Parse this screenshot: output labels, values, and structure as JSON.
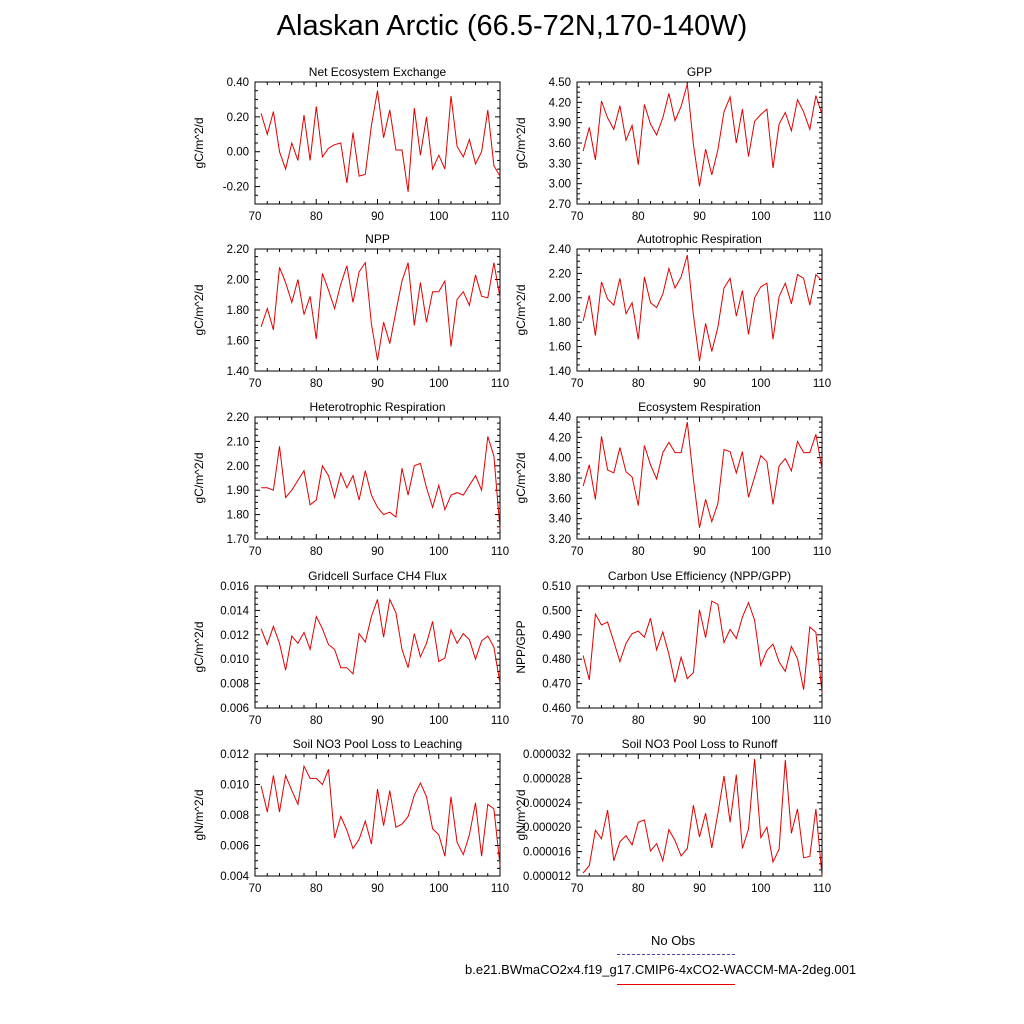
{
  "page": {
    "title": "Alaskan Arctic (66.5-72N,170-140W)",
    "legend": {
      "obs_label": "No Obs",
      "obs_color": "#4a4ab0",
      "model_label": "b.e21.BWmaCO2x4.f19_g17.CMIP6-4xCO2-WACCM-MA-2deg.001",
      "model_color": "#e00000"
    }
  },
  "chart_data": [
    {
      "type": "line",
      "title": "Net Ecosystem Exchange",
      "ylabel": "gC/m^2/d",
      "xlim": [
        70,
        110
      ],
      "ylim": [
        -0.3,
        0.4
      ],
      "xticks": [
        70,
        80,
        90,
        100,
        110
      ],
      "xtick_labels": [
        "70",
        "80",
        "90",
        "100",
        "110"
      ],
      "yticks": [
        -0.2,
        0.0,
        0.2,
        0.4
      ],
      "ytick_labels": [
        "-0.20",
        "0.00",
        "0.20",
        "0.40"
      ],
      "x": [
        71,
        72,
        73,
        74,
        75,
        76,
        77,
        78,
        79,
        80,
        81,
        82,
        83,
        84,
        85,
        86,
        87,
        88,
        89,
        90,
        91,
        92,
        93,
        94,
        95,
        96,
        97,
        98,
        99,
        100,
        101,
        102,
        103,
        104,
        105,
        106,
        107,
        108,
        109,
        110
      ],
      "values": [
        0.22,
        0.1,
        0.23,
        0.0,
        -0.1,
        0.05,
        -0.05,
        0.21,
        -0.05,
        0.26,
        -0.03,
        0.02,
        0.04,
        0.05,
        -0.18,
        0.11,
        -0.14,
        -0.13,
        0.15,
        0.35,
        0.08,
        0.24,
        0.01,
        0.01,
        -0.23,
        0.25,
        -0.02,
        0.2,
        -0.1,
        -0.02,
        -0.1,
        0.32,
        0.03,
        -0.03,
        0.07,
        -0.07,
        0.0,
        0.24,
        -0.08,
        -0.14
      ]
    },
    {
      "type": "line",
      "title": "GPP",
      "ylabel": "gC/m^2/d",
      "xlim": [
        70,
        110
      ],
      "ylim": [
        2.7,
        4.5
      ],
      "xticks": [
        70,
        80,
        90,
        100,
        110
      ],
      "xtick_labels": [
        "70",
        "80",
        "90",
        "100",
        "110"
      ],
      "yticks": [
        2.7,
        3.0,
        3.3,
        3.6,
        3.9,
        4.2,
        4.5
      ],
      "ytick_labels": [
        "2.70",
        "3.00",
        "3.30",
        "3.60",
        "3.90",
        "4.20",
        "4.50"
      ],
      "x": [
        71,
        72,
        73,
        74,
        75,
        76,
        77,
        78,
        79,
        80,
        81,
        82,
        83,
        84,
        85,
        86,
        87,
        88,
        89,
        90,
        91,
        92,
        93,
        94,
        95,
        96,
        97,
        98,
        99,
        100,
        101,
        102,
        103,
        104,
        105,
        106,
        107,
        108,
        109,
        110
      ],
      "values": [
        3.48,
        3.83,
        3.35,
        4.22,
        3.97,
        3.8,
        4.15,
        3.64,
        3.86,
        3.28,
        4.17,
        3.88,
        3.72,
        3.97,
        4.33,
        3.93,
        4.14,
        4.47,
        3.58,
        2.96,
        3.51,
        3.13,
        3.5,
        4.06,
        4.28,
        3.6,
        4.1,
        3.4,
        3.92,
        4.02,
        4.1,
        3.23,
        3.88,
        4.05,
        3.78,
        4.24,
        4.06,
        3.8,
        4.3,
        4.02
      ]
    },
    {
      "type": "line",
      "title": "NPP",
      "ylabel": "gC/m^2/d",
      "xlim": [
        70,
        110
      ],
      "ylim": [
        1.4,
        2.2
      ],
      "xticks": [
        70,
        80,
        90,
        100,
        110
      ],
      "xtick_labels": [
        "70",
        "80",
        "90",
        "100",
        "110"
      ],
      "yticks": [
        1.4,
        1.6,
        1.8,
        2.0,
        2.2
      ],
      "ytick_labels": [
        "1.40",
        "1.60",
        "1.80",
        "2.00",
        "2.20"
      ],
      "x": [
        71,
        72,
        73,
        74,
        75,
        76,
        77,
        78,
        79,
        80,
        81,
        82,
        83,
        84,
        85,
        86,
        87,
        88,
        89,
        90,
        91,
        92,
        93,
        94,
        95,
        96,
        97,
        98,
        99,
        100,
        101,
        102,
        103,
        104,
        105,
        106,
        107,
        108,
        109,
        110
      ],
      "values": [
        1.69,
        1.81,
        1.67,
        2.08,
        1.98,
        1.85,
        2.0,
        1.77,
        1.89,
        1.61,
        2.04,
        1.93,
        1.81,
        1.97,
        2.09,
        1.85,
        2.05,
        2.11,
        1.71,
        1.47,
        1.72,
        1.58,
        1.79,
        1.99,
        2.11,
        1.7,
        1.98,
        1.72,
        1.92,
        1.92,
        1.99,
        1.56,
        1.87,
        1.92,
        1.83,
        2.03,
        1.89,
        1.88,
        2.11,
        1.88
      ]
    },
    {
      "type": "line",
      "title": "Autotrophic Respiration",
      "ylabel": "gC/m^2/d",
      "xlim": [
        70,
        110
      ],
      "ylim": [
        1.4,
        2.4
      ],
      "xticks": [
        70,
        80,
        90,
        100,
        110
      ],
      "xtick_labels": [
        "70",
        "80",
        "90",
        "100",
        "110"
      ],
      "yticks": [
        1.4,
        1.6,
        1.8,
        2.0,
        2.2,
        2.4
      ],
      "ytick_labels": [
        "1.40",
        "1.60",
        "1.80",
        "2.00",
        "2.20",
        "2.40"
      ],
      "x": [
        71,
        72,
        73,
        74,
        75,
        76,
        77,
        78,
        79,
        80,
        81,
        82,
        83,
        84,
        85,
        86,
        87,
        88,
        89,
        90,
        91,
        92,
        93,
        94,
        95,
        96,
        97,
        98,
        99,
        100,
        101,
        102,
        103,
        104,
        105,
        106,
        107,
        108,
        109,
        110
      ],
      "values": [
        1.81,
        2.02,
        1.69,
        2.13,
        1.99,
        1.94,
        2.16,
        1.87,
        1.96,
        1.66,
        2.17,
        1.96,
        1.92,
        2.03,
        2.24,
        2.08,
        2.17,
        2.35,
        1.86,
        1.48,
        1.79,
        1.56,
        1.76,
        2.08,
        2.16,
        1.85,
        2.06,
        1.7,
        2.0,
        2.09,
        2.12,
        1.66,
        2.01,
        2.12,
        1.95,
        2.19,
        2.16,
        1.94,
        2.19,
        2.14
      ]
    },
    {
      "type": "line",
      "title": "Heterotrophic Respiration",
      "ylabel": "gC/m^2/d",
      "xlim": [
        70,
        110
      ],
      "ylim": [
        1.7,
        2.2
      ],
      "xticks": [
        70,
        80,
        90,
        100,
        110
      ],
      "xtick_labels": [
        "70",
        "80",
        "90",
        "100",
        "110"
      ],
      "yticks": [
        1.7,
        1.8,
        1.9,
        2.0,
        2.1,
        2.2
      ],
      "ytick_labels": [
        "1.70",
        "1.80",
        "1.90",
        "2.00",
        "2.10",
        "2.20"
      ],
      "x": [
        71,
        72,
        73,
        74,
        75,
        76,
        77,
        78,
        79,
        80,
        81,
        82,
        83,
        84,
        85,
        86,
        87,
        88,
        89,
        90,
        91,
        92,
        93,
        94,
        95,
        96,
        97,
        98,
        99,
        100,
        101,
        102,
        103,
        104,
        105,
        106,
        107,
        108,
        109,
        110
      ],
      "values": [
        1.91,
        1.91,
        1.9,
        2.08,
        1.87,
        1.9,
        1.94,
        1.98,
        1.84,
        1.86,
        2.0,
        1.96,
        1.87,
        1.97,
        1.91,
        1.96,
        1.86,
        1.98,
        1.88,
        1.83,
        1.8,
        1.81,
        1.79,
        1.99,
        1.88,
        2.0,
        2.01,
        1.91,
        1.83,
        1.92,
        1.82,
        1.88,
        1.89,
        1.88,
        1.92,
        1.96,
        1.9,
        2.12,
        2.04,
        1.74
      ]
    },
    {
      "type": "line",
      "title": "Ecosystem Respiration",
      "ylabel": "gC/m^2/d",
      "xlim": [
        70,
        110
      ],
      "ylim": [
        3.2,
        4.4
      ],
      "xticks": [
        70,
        80,
        90,
        100,
        110
      ],
      "xtick_labels": [
        "70",
        "80",
        "90",
        "100",
        "110"
      ],
      "yticks": [
        3.2,
        3.4,
        3.6,
        3.8,
        4.0,
        4.2,
        4.4
      ],
      "ytick_labels": [
        "3.20",
        "3.40",
        "3.60",
        "3.80",
        "4.00",
        "4.20",
        "4.40"
      ],
      "x": [
        71,
        72,
        73,
        74,
        75,
        76,
        77,
        78,
        79,
        80,
        81,
        82,
        83,
        84,
        85,
        86,
        87,
        88,
        89,
        90,
        91,
        92,
        93,
        94,
        95,
        96,
        97,
        98,
        99,
        100,
        101,
        102,
        103,
        104,
        105,
        106,
        107,
        108,
        109,
        110
      ],
      "values": [
        3.72,
        3.93,
        3.59,
        4.21,
        3.88,
        3.85,
        4.1,
        3.86,
        3.81,
        3.53,
        4.12,
        3.93,
        3.79,
        4.05,
        4.15,
        4.05,
        4.05,
        4.35,
        3.79,
        3.31,
        3.59,
        3.37,
        3.55,
        4.08,
        4.06,
        3.85,
        4.06,
        3.61,
        3.81,
        4.02,
        3.96,
        3.54,
        3.92,
        3.99,
        3.87,
        4.16,
        4.05,
        4.05,
        4.23,
        3.89
      ]
    },
    {
      "type": "line",
      "title": "Gridcell Surface CH4 Flux",
      "ylabel": "gC/m^2/d",
      "xlim": [
        70,
        110
      ],
      "ylim": [
        0.006,
        0.016
      ],
      "xticks": [
        70,
        80,
        90,
        100,
        110
      ],
      "xtick_labels": [
        "70",
        "80",
        "90",
        "100",
        "110"
      ],
      "yticks": [
        0.006,
        0.008,
        0.01,
        0.012,
        0.014,
        0.016
      ],
      "ytick_labels": [
        "0.006",
        "0.008",
        "0.010",
        "0.012",
        "0.014",
        "0.016"
      ],
      "x": [
        71,
        72,
        73,
        74,
        75,
        76,
        77,
        78,
        79,
        80,
        81,
        82,
        83,
        84,
        85,
        86,
        87,
        88,
        89,
        90,
        91,
        92,
        93,
        94,
        95,
        96,
        97,
        98,
        99,
        100,
        101,
        102,
        103,
        104,
        105,
        106,
        107,
        108,
        109,
        110
      ],
      "values": [
        0.0125,
        0.0112,
        0.0127,
        0.0113,
        0.0091,
        0.0119,
        0.0113,
        0.0122,
        0.0108,
        0.0135,
        0.0125,
        0.0112,
        0.0108,
        0.0093,
        0.0093,
        0.0088,
        0.0121,
        0.0114,
        0.0135,
        0.0149,
        0.0118,
        0.0149,
        0.0138,
        0.0108,
        0.0093,
        0.0121,
        0.0102,
        0.0113,
        0.0131,
        0.0098,
        0.0101,
        0.0124,
        0.0113,
        0.0121,
        0.0116,
        0.01,
        0.0115,
        0.0119,
        0.011,
        0.008
      ]
    },
    {
      "type": "line",
      "title": "Carbon Use Efficiency (NPP/GPP)",
      "ylabel": "NPP/GPP",
      "xlim": [
        70,
        110
      ],
      "ylim": [
        0.46,
        0.51
      ],
      "xticks": [
        70,
        80,
        90,
        100,
        110
      ],
      "xtick_labels": [
        "70",
        "80",
        "90",
        "100",
        "110"
      ],
      "yticks": [
        0.46,
        0.47,
        0.48,
        0.49,
        0.5,
        0.51
      ],
      "ytick_labels": [
        "0.460",
        "0.470",
        "0.480",
        "0.490",
        "0.500",
        "0.510"
      ],
      "x": [
        71,
        72,
        73,
        74,
        75,
        76,
        77,
        78,
        79,
        80,
        81,
        82,
        83,
        84,
        85,
        86,
        87,
        88,
        89,
        90,
        91,
        92,
        93,
        94,
        95,
        96,
        97,
        98,
        99,
        100,
        101,
        102,
        103,
        104,
        105,
        106,
        107,
        108,
        109,
        110
      ],
      "values": [
        0.4815,
        0.4715,
        0.4985,
        0.494,
        0.4952,
        0.4872,
        0.479,
        0.4865,
        0.4905,
        0.4915,
        0.489,
        0.4968,
        0.4838,
        0.4912,
        0.482,
        0.4705,
        0.4808,
        0.472,
        0.4745,
        0.5003,
        0.4888,
        0.5038,
        0.5025,
        0.4868,
        0.4922,
        0.4885,
        0.4972,
        0.5032,
        0.496,
        0.4775,
        0.4836,
        0.4862,
        0.4789,
        0.475,
        0.4852,
        0.4802,
        0.4675,
        0.4932,
        0.491,
        0.4662
      ]
    },
    {
      "type": "line",
      "title": "Soil NO3 Pool Loss to Leaching",
      "ylabel": "gN/m^2/d",
      "xlim": [
        70,
        110
      ],
      "ylim": [
        0.004,
        0.012
      ],
      "xticks": [
        70,
        80,
        90,
        100,
        110
      ],
      "xtick_labels": [
        "70",
        "80",
        "90",
        "100",
        "110"
      ],
      "yticks": [
        0.004,
        0.006,
        0.008,
        0.01,
        0.012
      ],
      "ytick_labels": [
        "0.004",
        "0.006",
        "0.008",
        "0.010",
        "0.012"
      ],
      "x": [
        71,
        72,
        73,
        74,
        75,
        76,
        77,
        78,
        79,
        80,
        81,
        82,
        83,
        84,
        85,
        86,
        87,
        88,
        89,
        90,
        91,
        92,
        93,
        94,
        95,
        96,
        97,
        98,
        99,
        100,
        101,
        102,
        103,
        104,
        105,
        106,
        107,
        108,
        109,
        110
      ],
      "values": [
        0.0099,
        0.0082,
        0.0106,
        0.0082,
        0.0106,
        0.0096,
        0.0087,
        0.0112,
        0.0104,
        0.0104,
        0.01,
        0.011,
        0.0065,
        0.0079,
        0.007,
        0.0058,
        0.0064,
        0.0076,
        0.0061,
        0.0097,
        0.0073,
        0.0096,
        0.0072,
        0.0074,
        0.0079,
        0.0093,
        0.0101,
        0.0092,
        0.0071,
        0.0067,
        0.0053,
        0.0092,
        0.0062,
        0.0054,
        0.0067,
        0.0088,
        0.0053,
        0.0087,
        0.0084,
        0.0047
      ]
    },
    {
      "type": "line",
      "title": "Soil NO3 Pool Loss to Runoff",
      "ylabel": "gN/m^2/d",
      "xlim": [
        70,
        110
      ],
      "ylim": [
        1.2e-05,
        3.2e-05
      ],
      "xticks": [
        70,
        80,
        90,
        100,
        110
      ],
      "xtick_labels": [
        "70",
        "80",
        "90",
        "100",
        "110"
      ],
      "yticks": [
        1.2e-05,
        1.6e-05,
        2e-05,
        2.4e-05,
        2.8e-05,
        3.2e-05
      ],
      "ytick_labels": [
        "0.000012",
        "0.000016",
        "0.000020",
        "0.000024",
        "0.000028",
        "0.000032"
      ],
      "x": [
        71,
        72,
        73,
        74,
        75,
        76,
        77,
        78,
        79,
        80,
        81,
        82,
        83,
        84,
        85,
        86,
        87,
        88,
        89,
        90,
        91,
        92,
        93,
        94,
        95,
        96,
        97,
        98,
        99,
        100,
        101,
        102,
        103,
        104,
        105,
        106,
        107,
        108,
        109,
        110
      ],
      "values": [
        1.25e-05,
        1.37e-05,
        1.95e-05,
        1.81e-05,
        2.28e-05,
        1.45e-05,
        1.76e-05,
        1.86e-05,
        1.71e-05,
        2.08e-05,
        2.12e-05,
        1.61e-05,
        1.73e-05,
        1.45e-05,
        1.96e-05,
        1.78e-05,
        1.53e-05,
        1.65e-05,
        2.36e-05,
        1.84e-05,
        2.23e-05,
        1.66e-05,
        2.23e-05,
        2.84e-05,
        2.08e-05,
        2.86e-05,
        1.65e-05,
        1.97e-05,
        3.12e-05,
        1.83e-05,
        2e-05,
        1.43e-05,
        1.64e-05,
        3.1e-05,
        1.9e-05,
        2.3e-05,
        1.5e-05,
        1.52e-05,
        2.3e-05,
        1.2e-05
      ]
    }
  ]
}
